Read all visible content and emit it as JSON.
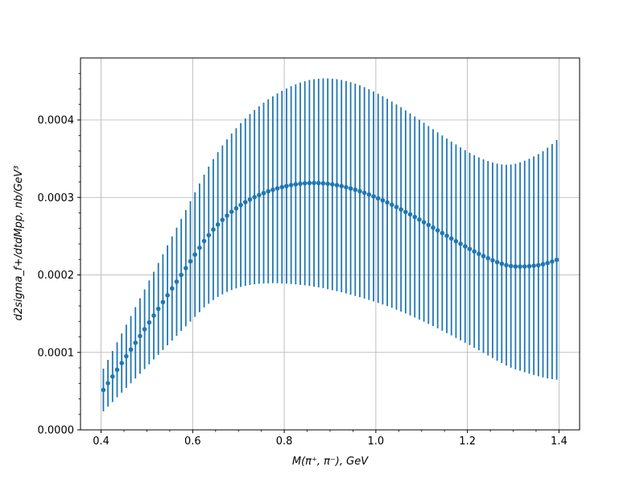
{
  "chart_data": {
    "type": "scatter",
    "title": "",
    "xlabel": "M(π⁺, π⁻), GeV",
    "ylabel": "d2sigma_f+/dtdMpp, nb/GeV³",
    "xlim": [
      0.355,
      1.445
    ],
    "ylim": [
      0.0,
      0.00048
    ],
    "xticks": [
      0.4,
      0.6,
      0.8,
      1.0,
      1.2,
      1.4
    ],
    "xtick_labels": [
      "0.4",
      "0.6",
      "0.8",
      "1.0",
      "1.2",
      "1.4"
    ],
    "yticks": [
      0.0,
      0.0001,
      0.0002,
      0.0003,
      0.0004
    ],
    "ytick_labels": [
      "0.0000",
      "0.0001",
      "0.0002",
      "0.0003",
      "0.0004"
    ],
    "grid": true,
    "legend": "none",
    "series": [
      {
        "color": "#1f77b4",
        "marker": "circle",
        "errorbars": true,
        "x": [
          0.405,
          0.415,
          0.425,
          0.435,
          0.445,
          0.455,
          0.465,
          0.475,
          0.485,
          0.495,
          0.505,
          0.515,
          0.525,
          0.535,
          0.545,
          0.555,
          0.565,
          0.575,
          0.585,
          0.595,
          0.605,
          0.615,
          0.625,
          0.635,
          0.645,
          0.655,
          0.665,
          0.675,
          0.685,
          0.695,
          0.705,
          0.715,
          0.725,
          0.735,
          0.745,
          0.755,
          0.765,
          0.775,
          0.785,
          0.795,
          0.805,
          0.815,
          0.825,
          0.835,
          0.845,
          0.855,
          0.865,
          0.875,
          0.885,
          0.895,
          0.905,
          0.915,
          0.925,
          0.935,
          0.945,
          0.955,
          0.965,
          0.975,
          0.985,
          0.995,
          1.005,
          1.015,
          1.025,
          1.035,
          1.045,
          1.055,
          1.065,
          1.075,
          1.085,
          1.095,
          1.105,
          1.115,
          1.125,
          1.135,
          1.145,
          1.155,
          1.165,
          1.175,
          1.185,
          1.195,
          1.205,
          1.215,
          1.225,
          1.235,
          1.245,
          1.255,
          1.265,
          1.275,
          1.285,
          1.295,
          1.305,
          1.315,
          1.325,
          1.335,
          1.345,
          1.355,
          1.365,
          1.375,
          1.385,
          1.395
        ],
        "y": [
          5.15e-05,
          6.02e-05,
          6.89e-05,
          7.76e-05,
          8.62e-05,
          9.5e-05,
          0.0001036,
          0.0001124,
          0.0001211,
          0.0001299,
          0.0001387,
          0.0001475,
          0.0001562,
          0.0001649,
          0.0001737,
          0.0001825,
          0.0001912,
          0.0002,
          0.0002087,
          0.0002175,
          0.0002262,
          0.000235,
          0.0002437,
          0.0002513,
          0.0002585,
          0.000265,
          0.000271,
          0.0002765,
          0.0002815,
          0.000286,
          0.0002902,
          0.0002939,
          0.0002973,
          0.0003004,
          0.0003031,
          0.0003056,
          0.0003079,
          0.0003099,
          0.0003117,
          0.0003133,
          0.0003147,
          0.0003159,
          0.0003169,
          0.0003177,
          0.0003183,
          0.0003186,
          0.0003187,
          0.0003186,
          0.0003182,
          0.0003176,
          0.0003168,
          0.0003158,
          0.0003146,
          0.0003132,
          0.0003116,
          0.0003099,
          0.000308,
          0.0003059,
          0.0003037,
          0.0003013,
          0.0002988,
          0.0002962,
          0.0002935,
          0.0002906,
          0.0002876,
          0.0002845,
          0.0002813,
          0.0002781,
          0.0002748,
          0.0002714,
          0.000268,
          0.0002645,
          0.000261,
          0.0002575,
          0.000254,
          0.0002505,
          0.000247,
          0.0002435,
          0.0002401,
          0.0002368,
          0.0002335,
          0.0002303,
          0.0002272,
          0.0002243,
          0.0002215,
          0.0002189,
          0.0002165,
          0.0002144,
          0.0002126,
          0.0002114,
          0.0002108,
          0.0002108,
          0.0002109,
          0.0002112,
          0.0002118,
          0.0002126,
          0.0002138,
          0.0002153,
          0.0002172,
          0.0002195
        ],
        "yerr": [
          2.76e-05,
          3.02e-05,
          3.29e-05,
          3.55e-05,
          3.82e-05,
          4.08e-05,
          4.34e-05,
          4.61e-05,
          4.87e-05,
          5.14e-05,
          5.41e-05,
          5.66e-05,
          5.93e-05,
          6.19e-05,
          6.45e-05,
          6.72e-05,
          6.99e-05,
          7.24e-05,
          7.51e-05,
          7.77e-05,
          8.04e-05,
          8.3e-05,
          8.56e-05,
          8.84e-05,
          9.1e-05,
          9.35e-05,
          9.6e-05,
          9.85e-05,
          0.000101,
          0.0001034,
          0.0001058,
          0.0001081,
          0.0001103,
          0.0001125,
          0.0001146,
          0.0001167,
          0.0001187,
          0.0001206,
          0.0001225,
          0.0001243,
          0.000126,
          0.0001276,
          0.0001291,
          0.0001305,
          0.0001317,
          0.0001329,
          0.0001339,
          0.0001347,
          0.0001354,
          0.000136,
          0.0001365,
          0.0001368,
          0.000137,
          0.0001371,
          0.0001371,
          0.000137,
          0.0001367,
          0.0001364,
          0.000136,
          0.0001355,
          0.000135,
          0.0001344,
          0.0001338,
          0.0001331,
          0.0001325,
          0.0001318,
          0.0001311,
          0.0001304,
          0.0001297,
          0.000129,
          0.0001284,
          0.0001277,
          0.0001271,
          0.0001265,
          0.000126,
          0.0001255,
          0.0001251,
          0.0001248,
          0.0001245,
          0.0001243,
          0.0001242,
          0.0001243,
          0.0001245,
          0.0001249,
          0.0001255,
          0.0001262,
          0.0001271,
          0.0001282,
          0.0001296,
          0.0001311,
          0.0001327,
          0.0001345,
          0.0001365,
          0.0001387,
          0.000141,
          0.0001434,
          0.000146,
          0.0001488,
          0.0001517,
          0.0001547
        ]
      }
    ]
  }
}
